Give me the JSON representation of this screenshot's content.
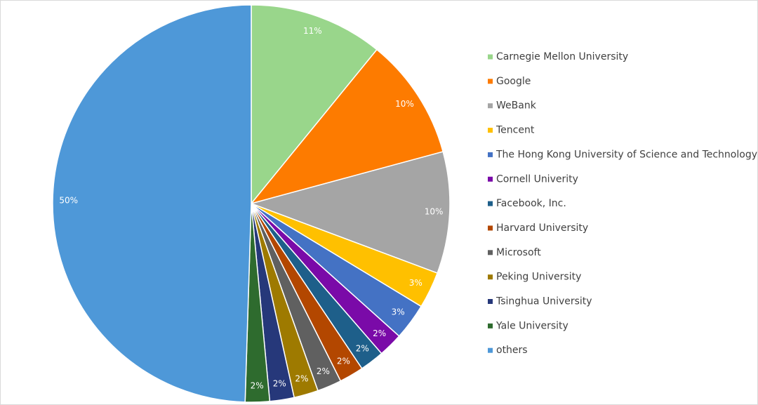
{
  "chart_data": {
    "type": "pie",
    "categories": [
      "Carnegie Mellon University",
      "Google",
      "WeBank",
      "Tencent",
      "The Hong Kong University of Science and Technology",
      "Cornell Univerity",
      "Facebook, Inc.",
      "Harvard University",
      "Microsoft",
      "Peking University",
      "Tsinghua University",
      "Yale University",
      "others"
    ],
    "values": [
      11,
      10,
      10,
      3,
      3,
      2,
      2,
      2,
      2,
      2,
      2,
      2,
      50
    ],
    "value_labels": [
      "11%",
      "10%",
      "10%",
      "3%",
      "3%",
      "2%",
      "2%",
      "2%",
      "2%",
      "2%",
      "2%",
      "2%",
      "50%"
    ],
    "colors": [
      "#99d68b",
      "#fd7b00",
      "#a5a5a5",
      "#ffc000",
      "#4472c4",
      "#7a0aa8",
      "#1e5f8a",
      "#b34700",
      "#606060",
      "#9e7a00",
      "#26387a",
      "#2e6b2e",
      "#4e98d8"
    ],
    "legend": "right"
  }
}
